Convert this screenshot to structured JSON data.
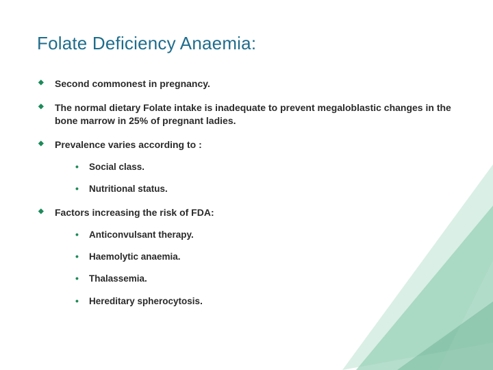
{
  "title_text": "Folate Deficiency Anaemia:",
  "title_color": "#1f6d8c",
  "title_fontsize": 26,
  "body_color": "#2a2a2a",
  "body_fontsize": 14,
  "bullet_color": "#1d8a5a",
  "background_color": "#ffffff",
  "deco": {
    "triangle1_fill": "rgba(42,160,110,0.35)",
    "triangle2_fill": "rgba(150,210,180,0.35)",
    "triangle3_fill": "rgba(200,230,215,0.30)",
    "triangle4_fill": "rgba(60,150,110,0.28)"
  },
  "bullets": [
    {
      "text": "Second commonest in pregnancy."
    },
    {
      "text": "The normal dietary Folate intake is inadequate to prevent megaloblastic changes in the bone marrow in 25% of pregnant ladies."
    },
    {
      "text": "Prevalence varies according to :",
      "sub": [
        "Social class.",
        "Nutritional status."
      ]
    },
    {
      "text": "Factors increasing the risk of FDA:",
      "sub": [
        "Anticonvulsant therapy.",
        "Haemolytic anaemia.",
        "Thalassemia.",
        "Hereditary spherocytosis."
      ]
    }
  ]
}
